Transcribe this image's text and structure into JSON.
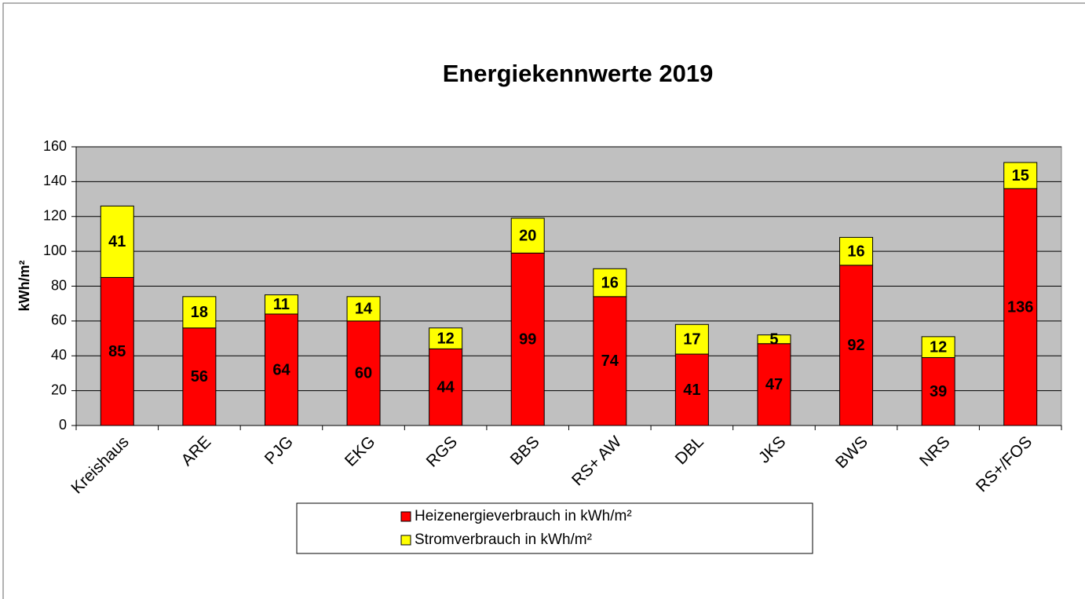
{
  "chart_data": {
    "type": "stacked_bar",
    "title": "Energiekennwerte 2019",
    "y_label": "kWh/m²",
    "categories": [
      "Kreishaus",
      "ARE",
      "PJG",
      "EKG",
      "RGS",
      "BBS",
      "RS+ AW",
      "DBL",
      "JKS",
      "BWS",
      "NRS",
      "RS+/FOS"
    ],
    "series": [
      {
        "name": "Heizenergieverbrauch in kWh/m²",
        "color": "#ff0000",
        "values": [
          85,
          56,
          64,
          60,
          44,
          99,
          74,
          41,
          47,
          92,
          39,
          136
        ]
      },
      {
        "name": "Stromverbrauch in kWh/m²",
        "color": "#ffff00",
        "values": [
          41,
          18,
          11,
          14,
          12,
          20,
          16,
          17,
          5,
          16,
          12,
          15
        ]
      }
    ],
    "ylim": [
      0,
      160
    ],
    "yticks": [
      0,
      20,
      40,
      60,
      80,
      100,
      120,
      140,
      160
    ],
    "grid": true,
    "plot_background": "#c0c0c0",
    "legend": "bottom"
  }
}
